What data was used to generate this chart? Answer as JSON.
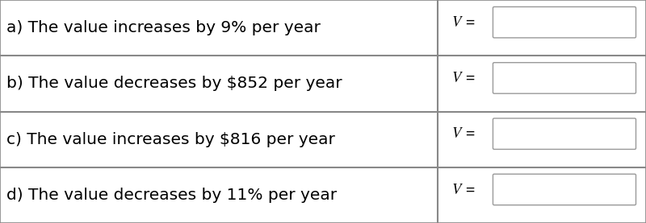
{
  "rows": [
    {
      "label": "a) The value increases by 9% per year"
    },
    {
      "label": "b) The value decreases by $852 per year"
    },
    {
      "label": "c) The value increases by $816 per year"
    },
    {
      "label": "d) The value decreases by 11% per year"
    }
  ],
  "v_label": "V =",
  "background_color": "#ffffff",
  "border_color": "#888888",
  "box_fill_color": "#ffffff",
  "box_border_color": "#999999",
  "text_color": "#000000",
  "font_size": 14.5,
  "v_font_size": 13.5,
  "col_split": 0.678,
  "fig_width": 8.0,
  "fig_height": 2.77
}
